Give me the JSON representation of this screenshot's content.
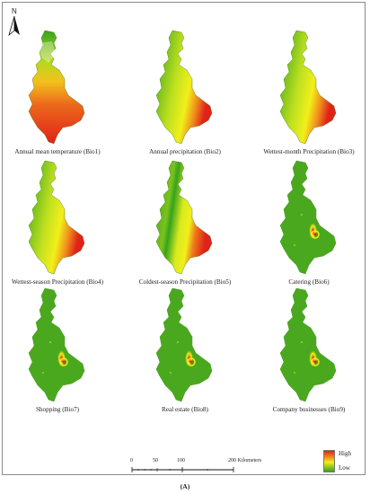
{
  "north_arrow": {
    "label": "N"
  },
  "panels": [
    {
      "caption": "Annual mean temperature (Bio1)",
      "style": "temperature"
    },
    {
      "caption": "Annual precipitation (Bio2)",
      "style": "gradient"
    },
    {
      "caption": "Wettest-month Precipitation (Bio3)",
      "style": "gradient"
    },
    {
      "caption": "Wettest-season Precipitation (Bio4)",
      "style": "gradient"
    },
    {
      "caption": "Coldest-season Precipitation (Bio5)",
      "style": "banded"
    },
    {
      "caption": "Catering (Bio6)",
      "style": "hotspot"
    },
    {
      "caption": "Shopping (Bio7)",
      "style": "hotspot"
    },
    {
      "caption": "Real estate (Bio8)",
      "style": "hotspot"
    },
    {
      "caption": "Company businesses (Bio9)",
      "style": "hotspot"
    }
  ],
  "scale_bar": {
    "ticks": [
      "0",
      "50",
      "100",
      "200 Kilometers"
    ]
  },
  "legend": {
    "high": "High",
    "low": "Low",
    "colors": {
      "high": "#e0221a",
      "mid": "#f2ef1a",
      "low": "#37a31c"
    }
  },
  "figure_label": "(A)"
}
